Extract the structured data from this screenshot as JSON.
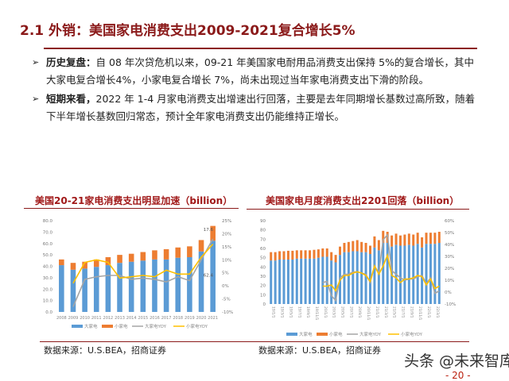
{
  "title": "2.1 外销：美国家电消费支出2009-2021复合增长5%",
  "bullets": [
    {
      "head": "历史复盘：",
      "text": "自 08 年次贷危机以来，09-21 年美国家电耐用品消费支出保持 5%的复合增长，其中大家电复合增长4%，小家电复合增长 7%，尚未出现过当年家电消费支出下滑的阶段。"
    },
    {
      "head": "短期来看，",
      "text": "2022 年 1-4 月家电消费支出增速出行回落，主要是去年同期增长基数过高所致，随着下半年增长基数回归常态，预计全年家电消费支出仍能维持正增长。"
    }
  ],
  "colors": {
    "accent": "#8b1a1a",
    "large": "#5b9bd5",
    "small": "#ed7d31",
    "large_yoy": "#a5a5a5",
    "small_yoy": "#ffc000"
  },
  "chart_data": [
    {
      "type": "bar",
      "title": "美国20-21家电消费支出明显加速（billion）",
      "categories": [
        "2008",
        "2009",
        "2010",
        "2011",
        "2012",
        "2013",
        "2014",
        "2015",
        "2016",
        "2017",
        "2018",
        "2019",
        "2020",
        "2021"
      ],
      "ylim": [
        0,
        80
      ],
      "yticks": [
        "0.0",
        "10.0",
        "20.0",
        "30.0",
        "40.0",
        "50.0",
        "60.0",
        "70.0",
        "80.0"
      ],
      "y2lim": [
        -10,
        25
      ],
      "y2ticks": [
        "-10%",
        "-5%",
        "0%",
        "5%",
        "10%",
        "15%",
        "20%",
        "25%"
      ],
      "series": [
        {
          "name": "大家电",
          "values": [
            41,
            37,
            38,
            39.5,
            41,
            43,
            44,
            45,
            46,
            46,
            47.5,
            48,
            53,
            62.4
          ]
        },
        {
          "name": "小家电",
          "values": [
            5,
            6,
            6,
            6.5,
            7,
            7,
            7,
            7.5,
            8,
            9,
            9,
            9.5,
            10,
            13
          ]
        },
        {
          "name": "大家电YOY",
          "values": [
            null,
            -8,
            2.5,
            3.5,
            4,
            4,
            2.5,
            3,
            2.5,
            1.5,
            3.5,
            2,
            10,
            18
          ]
        },
        {
          "name": "小家电YOY",
          "values": [
            null,
            1,
            9,
            10,
            9,
            3,
            3.5,
            4,
            3.5,
            6,
            4.5,
            4.5,
            11,
            16
          ]
        }
      ],
      "labels": [
        "17.6",
        "62.4"
      ]
    },
    {
      "type": "bar",
      "title": "美国家电月度消费支出2201回落（billion）",
      "categories": [
        "19/1/1",
        "19/2/1",
        "19/3/1",
        "19/4/1",
        "19/5/1",
        "19/6/1",
        "19/7/1",
        "19/8/1",
        "19/9/1",
        "19/10/1",
        "19/11/1",
        "19/12/1",
        "20/1/1",
        "20/2/1",
        "20/3/1",
        "20/4/1",
        "20/5/1",
        "20/6/1",
        "20/7/1",
        "20/8/1",
        "20/9/1",
        "20/10/1",
        "20/11/1",
        "20/12/1",
        "21/1/1",
        "21/2/1",
        "21/3/1",
        "21/4/1",
        "21/5/1",
        "21/6/1",
        "21/7/1",
        "21/8/1",
        "21/9/1",
        "21/10/1",
        "21/11/1",
        "21/12/1",
        "22/1/1",
        "22/2/1",
        "22/3/1",
        "22/4/1"
      ],
      "ylim": [
        0,
        90
      ],
      "yticks": [
        "0",
        "10",
        "20",
        "30",
        "40",
        "50",
        "60",
        "70",
        "80",
        "90"
      ],
      "y2lim": [
        -10,
        60
      ],
      "y2ticks": [
        "-10%",
        "0%",
        "10%",
        "20%",
        "30%",
        "40%",
        "50%",
        "60%"
      ],
      "series": [
        {
          "name": "大家电",
          "values": [
            47,
            47,
            48,
            48,
            48,
            48,
            49,
            49,
            49,
            49,
            49,
            50,
            51,
            51,
            47,
            45,
            53,
            56,
            56,
            57,
            57,
            56,
            56,
            54,
            61,
            58,
            66,
            66,
            62,
            64,
            63,
            63,
            64,
            63,
            65,
            61,
            65,
            65,
            65,
            66
          ]
        },
        {
          "name": "小家电",
          "values": [
            9,
            9,
            9,
            9,
            9.5,
            9.5,
            9,
            9,
            9,
            9,
            9.5,
            9,
            9,
            9,
            9,
            8,
            9,
            10,
            11,
            11,
            12,
            11,
            10,
            9,
            12,
            11,
            13,
            12,
            12,
            12,
            11,
            12,
            12,
            12,
            12,
            11,
            12,
            12,
            12,
            12
          ]
        },
        {
          "name": "大家电YOY",
          "values": [
            null,
            null,
            null,
            null,
            null,
            null,
            null,
            null,
            null,
            null,
            null,
            null,
            8,
            9,
            -3,
            -7,
            12,
            15,
            15,
            17,
            17,
            16,
            15,
            8,
            22,
            16,
            44,
            48,
            18,
            15,
            12,
            10,
            11,
            11,
            13,
            14,
            7,
            12,
            -1,
            1
          ]
        },
        {
          "name": "小家电YOY",
          "values": [
            null,
            null,
            null,
            null,
            null,
            null,
            null,
            null,
            null,
            null,
            null,
            null,
            5,
            5,
            6,
            1,
            10,
            14,
            14,
            16,
            17,
            16,
            14,
            9,
            22,
            15,
            22,
            31,
            14,
            12,
            8,
            11,
            11,
            12,
            14,
            13,
            6,
            11,
            3,
            5
          ]
        }
      ]
    }
  ],
  "source": "数据来源：U.S.BEA，招商证券",
  "watermark": "头条 @未来智库",
  "page_number": "- 20 -"
}
